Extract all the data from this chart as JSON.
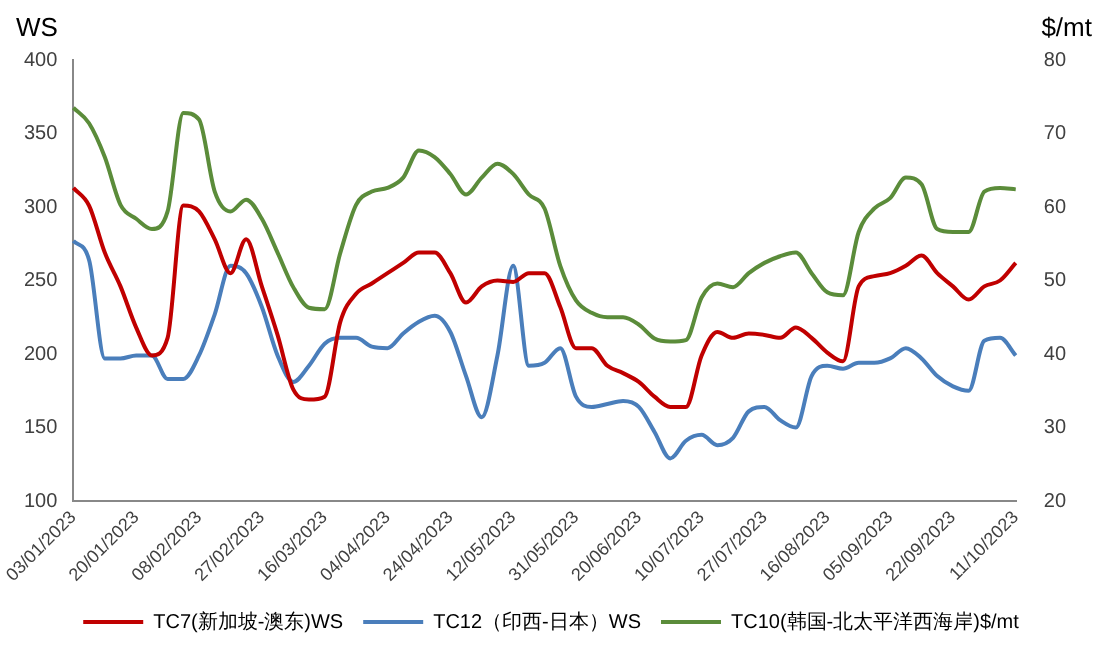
{
  "chart_data": {
    "type": "line",
    "ylabel": "WS",
    "y2label": "$/mt",
    "categories": [
      "03/01/2023",
      null,
      null,
      null,
      "20/01/2023",
      null,
      null,
      null,
      "08/02/2023",
      null,
      null,
      null,
      "27/02/2023",
      null,
      null,
      null,
      "16/03/2023",
      null,
      null,
      null,
      "04/04/2023",
      null,
      null,
      null,
      "24/04/2023",
      null,
      null,
      null,
      "12/05/2023",
      null,
      null,
      null,
      "31/05/2023",
      null,
      null,
      null,
      "20/06/2023",
      null,
      null,
      null,
      "10/07/2023",
      null,
      null,
      null,
      "27/07/2023",
      null,
      null,
      null,
      "16/08/2023",
      null,
      null,
      null,
      "05/09/2023",
      null,
      null,
      null,
      "22/09/2023",
      null,
      null,
      null,
      "11/10/2023"
    ],
    "series": [
      {
        "name": "TC7(新加坡-澳东)WS",
        "color": "#c00000",
        "values": [
          313,
          301,
          269,
          246,
          218,
          199,
          211,
          301,
          297,
          278,
          255,
          278,
          246,
          213,
          176,
          169,
          171,
          222,
          241,
          248,
          255,
          262,
          269,
          269,
          255,
          235,
          246,
          250,
          249,
          255,
          255,
          232,
          204,
          204,
          192,
          187,
          181,
          171,
          164,
          164,
          199,
          215,
          211,
          214,
          213,
          211,
          218,
          211,
          201,
          195,
          246,
          253,
          255,
          260,
          267,
          255,
          246,
          237,
          246,
          250,
          262
        ]
      },
      {
        "name": "TC12（印西-日本）WS",
        "color": "#4a7ebb",
        "values": [
          277,
          264,
          197,
          197,
          199,
          199,
          183,
          183,
          199,
          227,
          260,
          255,
          232,
          199,
          181,
          192,
          207,
          211,
          211,
          205,
          204,
          214,
          222,
          226,
          215,
          185,
          157,
          199,
          260,
          192,
          194,
          204,
          171,
          164,
          166,
          168,
          164,
          147,
          129,
          141,
          145,
          138,
          143,
          161,
          164,
          155,
          150,
          185,
          192,
          190,
          194,
          194,
          197,
          204,
          197,
          185,
          178,
          175,
          209,
          211,
          199
        ]
      },
      {
        "name": "TC10(韩国-北太平洋西海岸)$/mt",
        "color": "#5b8c3a",
        "axis": "y2",
        "values": [
          73.5,
          71.4,
          66.8,
          60.3,
          58.4,
          57,
          59.4,
          72.8,
          71.9,
          62.1,
          59.4,
          61,
          58.4,
          53.8,
          49.1,
          46.3,
          46.1,
          53.8,
          60.3,
          62.1,
          62.6,
          64,
          67.7,
          66.8,
          64.5,
          61.7,
          64,
          65.9,
          64.5,
          61.7,
          59.8,
          52,
          47.3,
          45.6,
          45,
          45,
          44,
          42.1,
          41.7,
          41.9,
          47.7,
          49.6,
          49.1,
          51,
          52.4,
          53.3,
          53.8,
          51,
          48.4,
          48,
          56.6,
          59.8,
          61.2,
          64,
          63.1,
          57,
          56.6,
          56.6,
          62.1,
          62.6,
          62.4
        ]
      }
    ],
    "ylim": [
      100,
      400
    ],
    "yticks": [
      100,
      150,
      200,
      250,
      300,
      350,
      400
    ],
    "y2lim": [
      20,
      80
    ],
    "y2ticks": [
      20,
      30,
      40,
      50,
      60,
      70,
      80
    ],
    "grid": false,
    "legend": "bottom",
    "marker": "none",
    "line_style": "solid"
  }
}
